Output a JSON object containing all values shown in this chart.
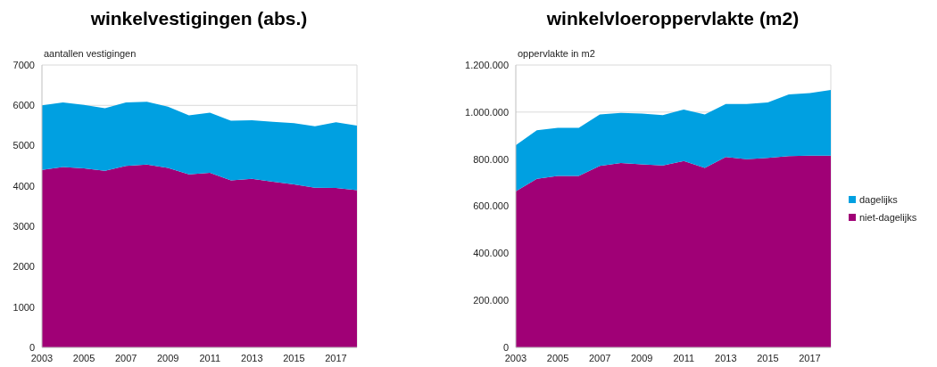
{
  "chart_data": [
    {
      "type": "area",
      "title": "winkelvestigingen (abs.)",
      "ylabel": "aantallen vestigingen",
      "stacked": true,
      "x": [
        2003,
        2004,
        2005,
        2006,
        2007,
        2008,
        2009,
        2010,
        2011,
        2012,
        2013,
        2014,
        2015,
        2016,
        2017,
        2018
      ],
      "series": [
        {
          "color": "#a00076",
          "values": [
            4400,
            4470,
            4440,
            4380,
            4500,
            4530,
            4450,
            4290,
            4330,
            4140,
            4180,
            4110,
            4040,
            3960,
            3950,
            3900
          ]
        },
        {
          "color": "#00a0e1",
          "values": [
            1600,
            1600,
            1570,
            1550,
            1570,
            1560,
            1520,
            1460,
            1490,
            1480,
            1450,
            1480,
            1520,
            1520,
            1630,
            1600
          ]
        }
      ],
      "xlim": [
        2003,
        2018
      ],
      "xticks": [
        2003,
        2005,
        2007,
        2009,
        2011,
        2013,
        2015,
        2017
      ],
      "ylim": [
        0,
        7000
      ],
      "yticks": [
        0,
        1000,
        2000,
        3000,
        4000,
        5000,
        6000,
        7000
      ],
      "grid": "y",
      "legend": false
    },
    {
      "type": "area",
      "title": "winkelvloeroppervlakte (m2)",
      "ylabel": "oppervlakte in m2",
      "stacked": true,
      "x": [
        2003,
        2004,
        2005,
        2006,
        2007,
        2008,
        2009,
        2010,
        2011,
        2012,
        2013,
        2014,
        2015,
        2016,
        2017,
        2018
      ],
      "series": [
        {
          "name": "niet-dagelijks",
          "color": "#a00076",
          "values": [
            663000,
            716000,
            729000,
            729000,
            771000,
            784000,
            778000,
            773000,
            792000,
            763000,
            809000,
            800000,
            805000,
            813000,
            815000,
            815000
          ]
        },
        {
          "name": "dagelijks",
          "color": "#00a0e1",
          "values": [
            196000,
            207000,
            204000,
            204000,
            219000,
            213000,
            216000,
            214000,
            219000,
            227000,
            225000,
            234000,
            236000,
            262000,
            266000,
            279000
          ]
        }
      ],
      "xlim": [
        2003,
        2018
      ],
      "xticks": [
        2003,
        2005,
        2007,
        2009,
        2011,
        2013,
        2015,
        2017
      ],
      "ylim": [
        0,
        1200000
      ],
      "yticks": [
        {
          "value": 0,
          "label": "0"
        },
        {
          "value": 200000,
          "label": "200.000"
        },
        {
          "value": 400000,
          "label": "400.000"
        },
        {
          "value": 600000,
          "label": "600.000"
        },
        {
          "value": 800000,
          "label": "800.000"
        },
        {
          "value": 1000000,
          "label": "1.000.000"
        },
        {
          "value": 1200000,
          "label": "1.200.000"
        }
      ],
      "grid": "y",
      "legend": "right"
    }
  ]
}
